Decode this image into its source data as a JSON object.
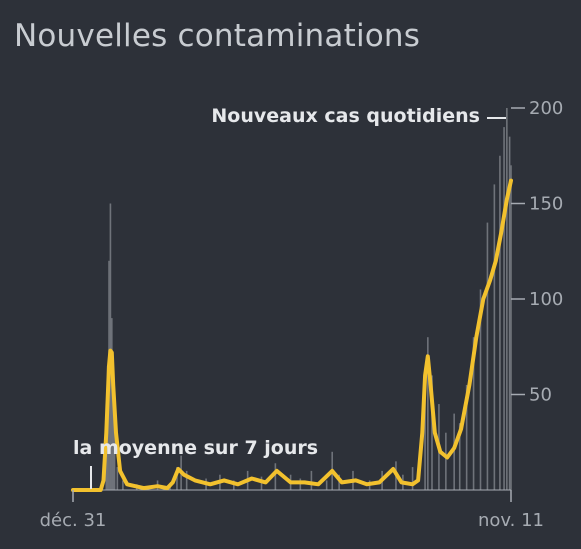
{
  "title": "Nouvelles contaminations",
  "colors": {
    "background": "#2d3139",
    "bars": "#6f737a",
    "average_line": "#f2c12e",
    "axis": "#a6abb2",
    "annotation": "#e6e8eb"
  },
  "chart_data": {
    "type": "line",
    "title": "Nouvelles contaminations",
    "xlabel": "",
    "ylabel": "",
    "x_range": [
      "2019-12-31",
      "2020-11-11"
    ],
    "x_tick_labels": [
      "déc. 31",
      "nov. 11"
    ],
    "ylim": [
      0,
      200
    ],
    "y_ticks": [
      50,
      100,
      150,
      200
    ],
    "grid": false,
    "annotations": [
      {
        "text": "Nouveaux cas quotidiens",
        "target": "daily_cases"
      },
      {
        "text": "la moyenne sur 7 jours",
        "target": "avg_7d"
      }
    ],
    "daily_cases_description": "grey bars, new cases per day",
    "daily_cases": [
      [
        "2019-12-31",
        0
      ],
      [
        "2020-01-10",
        0
      ],
      [
        "2020-01-20",
        2
      ],
      [
        "2020-01-24",
        45
      ],
      [
        "2020-01-25",
        65
      ],
      [
        "2020-01-26",
        120
      ],
      [
        "2020-01-27",
        150
      ],
      [
        "2020-01-28",
        90
      ],
      [
        "2020-01-29",
        60
      ],
      [
        "2020-01-30",
        30
      ],
      [
        "2020-02-01",
        12
      ],
      [
        "2020-02-05",
        5
      ],
      [
        "2020-02-15",
        3
      ],
      [
        "2020-03-01",
        5
      ],
      [
        "2020-03-10",
        2
      ],
      [
        "2020-03-15",
        12
      ],
      [
        "2020-03-18",
        18
      ],
      [
        "2020-03-22",
        10
      ],
      [
        "2020-04-05",
        6
      ],
      [
        "2020-04-15",
        8
      ],
      [
        "2020-04-25",
        5
      ],
      [
        "2020-05-05",
        10
      ],
      [
        "2020-05-15",
        7
      ],
      [
        "2020-05-25",
        14
      ],
      [
        "2020-06-05",
        8
      ],
      [
        "2020-06-12",
        6
      ],
      [
        "2020-06-20",
        10
      ],
      [
        "2020-07-01",
        5
      ],
      [
        "2020-07-05",
        20
      ],
      [
        "2020-07-10",
        8
      ],
      [
        "2020-07-20",
        10
      ],
      [
        "2020-08-01",
        5
      ],
      [
        "2020-08-10",
        10
      ],
      [
        "2020-08-20",
        15
      ],
      [
        "2020-08-25",
        8
      ],
      [
        "2020-09-01",
        12
      ],
      [
        "2020-09-10",
        50
      ],
      [
        "2020-09-12",
        80
      ],
      [
        "2020-09-15",
        60
      ],
      [
        "2020-09-20",
        45
      ],
      [
        "2020-09-25",
        30
      ],
      [
        "2020-10-01",
        40
      ],
      [
        "2020-10-05",
        35
      ],
      [
        "2020-10-10",
        55
      ],
      [
        "2020-10-15",
        80
      ],
      [
        "2020-10-20",
        105
      ],
      [
        "2020-10-25",
        140
      ],
      [
        "2020-10-30",
        160
      ],
      [
        "2020-11-03",
        175
      ],
      [
        "2020-11-06",
        190
      ],
      [
        "2020-11-08",
        200
      ],
      [
        "2020-11-10",
        185
      ],
      [
        "2020-11-11",
        170
      ]
    ],
    "avg_7d_description": "yellow line, 7-day moving average",
    "avg_7d": [
      [
        "2019-12-31",
        0
      ],
      [
        "2020-01-10",
        0
      ],
      [
        "2020-01-20",
        0
      ],
      [
        "2020-01-22",
        5
      ],
      [
        "2020-01-24",
        30
      ],
      [
        "2020-01-26",
        65
      ],
      [
        "2020-01-27",
        73
      ],
      [
        "2020-01-28",
        72
      ],
      [
        "2020-01-29",
        55
      ],
      [
        "2020-01-31",
        30
      ],
      [
        "2020-02-03",
        10
      ],
      [
        "2020-02-08",
        3
      ],
      [
        "2020-02-20",
        1
      ],
      [
        "2020-03-01",
        2
      ],
      [
        "2020-03-08",
        1
      ],
      [
        "2020-03-12",
        4
      ],
      [
        "2020-03-16",
        11
      ],
      [
        "2020-03-20",
        8
      ],
      [
        "2020-03-28",
        5
      ],
      [
        "2020-04-08",
        3
      ],
      [
        "2020-04-18",
        5
      ],
      [
        "2020-04-28",
        3
      ],
      [
        "2020-05-08",
        6
      ],
      [
        "2020-05-18",
        4
      ],
      [
        "2020-05-26",
        10
      ],
      [
        "2020-06-05",
        4
      ],
      [
        "2020-06-15",
        4
      ],
      [
        "2020-06-25",
        3
      ],
      [
        "2020-07-05",
        10
      ],
      [
        "2020-07-12",
        4
      ],
      [
        "2020-07-22",
        5
      ],
      [
        "2020-07-30",
        3
      ],
      [
        "2020-08-08",
        4
      ],
      [
        "2020-08-18",
        11
      ],
      [
        "2020-08-24",
        4
      ],
      [
        "2020-09-01",
        3
      ],
      [
        "2020-09-05",
        5
      ],
      [
        "2020-09-08",
        30
      ],
      [
        "2020-09-10",
        60
      ],
      [
        "2020-09-12",
        70
      ],
      [
        "2020-09-14",
        55
      ],
      [
        "2020-09-17",
        30
      ],
      [
        "2020-09-21",
        20
      ],
      [
        "2020-09-26",
        17
      ],
      [
        "2020-10-01",
        22
      ],
      [
        "2020-10-06",
        32
      ],
      [
        "2020-10-12",
        55
      ],
      [
        "2020-10-17",
        80
      ],
      [
        "2020-10-22",
        100
      ],
      [
        "2020-10-27",
        110
      ],
      [
        "2020-10-31",
        120
      ],
      [
        "2020-11-04",
        135
      ],
      [
        "2020-11-08",
        152
      ],
      [
        "2020-11-11",
        162
      ]
    ]
  }
}
